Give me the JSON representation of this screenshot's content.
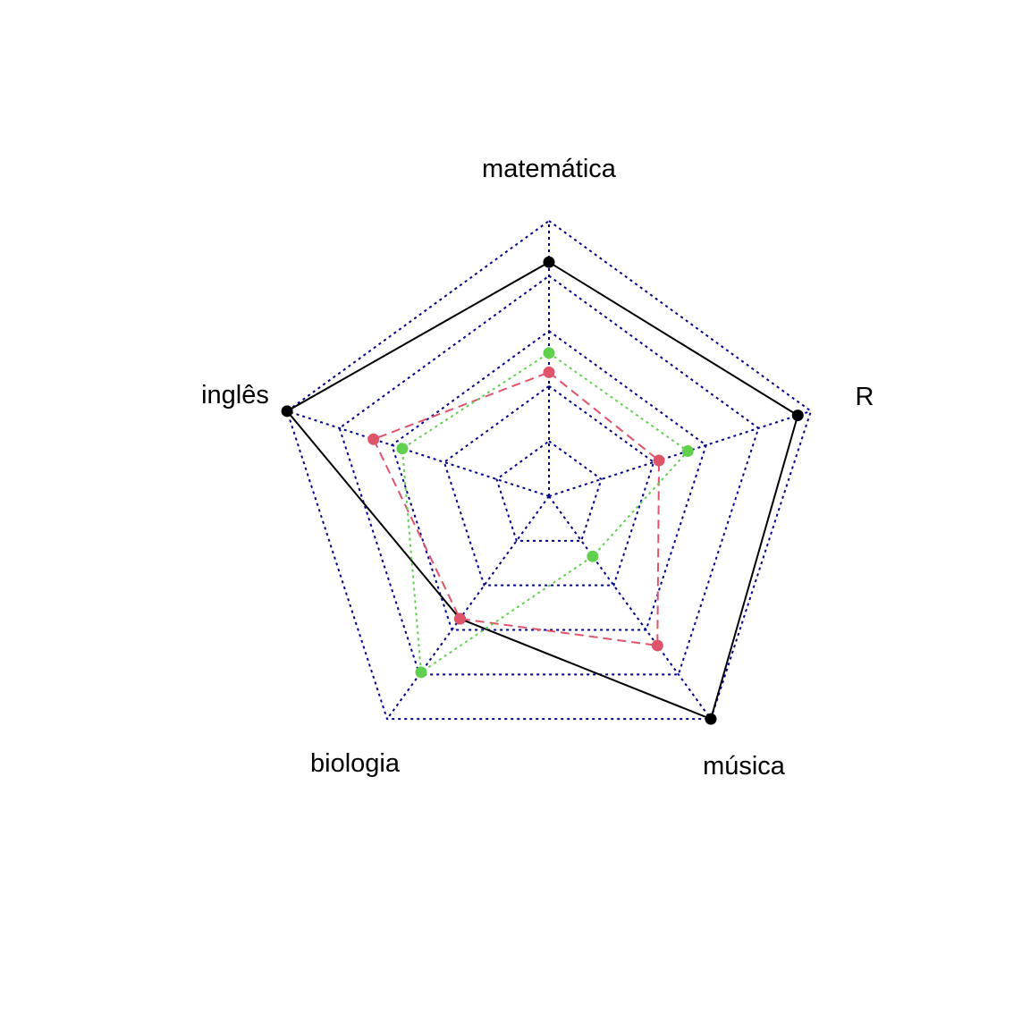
{
  "chart_data": {
    "type": "radar",
    "title": "",
    "axes": [
      "matemática",
      "R",
      "música",
      "biologia",
      "inglês"
    ],
    "range": [
      0,
      10
    ],
    "grid_levels": [
      2,
      4,
      6,
      8,
      10
    ],
    "grid_color": "#00008b",
    "grid_line_style": "dotted",
    "legend": "none",
    "series": [
      {
        "color": "#000000",
        "line_style": "solid",
        "values": [
          8.5,
          9.5,
          10,
          5.5,
          10
        ]
      },
      {
        "color": "#df536b",
        "line_style": "dashed",
        "values": [
          4.5,
          4.2,
          6.7,
          5.5,
          6.7
        ]
      },
      {
        "color": "#61d04f",
        "line_style": "dotted",
        "values": [
          5.2,
          5.3,
          2.7,
          7.9,
          5.6
        ]
      }
    ]
  }
}
